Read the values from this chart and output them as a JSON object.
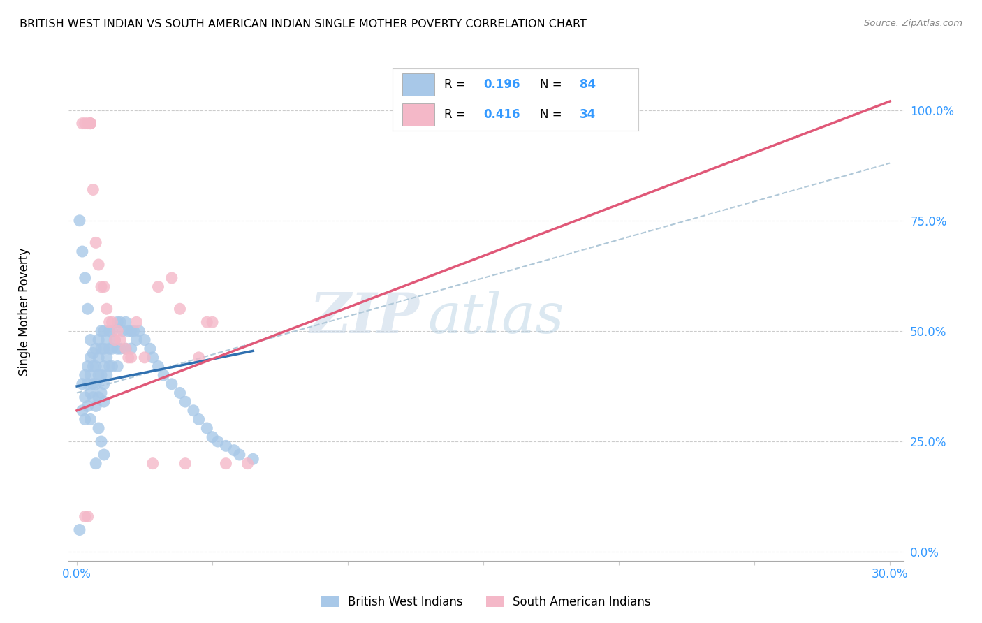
{
  "title": "BRITISH WEST INDIAN VS SOUTH AMERICAN INDIAN SINGLE MOTHER POVERTY CORRELATION CHART",
  "source": "Source: ZipAtlas.com",
  "ylabel": "Single Mother Poverty",
  "ytick_labels": [
    "0.0%",
    "25.0%",
    "50.0%",
    "75.0%",
    "100.0%"
  ],
  "ytick_vals": [
    0.0,
    0.25,
    0.5,
    0.75,
    1.0
  ],
  "xtick_labels": [
    "0.0%",
    "",
    "",
    "",
    "",
    "",
    "30.0%"
  ],
  "xtick_vals": [
    0.0,
    0.05,
    0.1,
    0.15,
    0.2,
    0.25,
    0.3
  ],
  "xlim": [
    -0.003,
    0.305
  ],
  "ylim": [
    -0.02,
    1.08
  ],
  "blue_color": "#a8c8e8",
  "pink_color": "#f4b8c8",
  "blue_line_color": "#3070b0",
  "pink_line_color": "#e05878",
  "dashed_line_color": "#b0c8d8",
  "legend_label1": "British West Indians",
  "legend_label2": "South American Indians",
  "watermark_zip": "ZIP",
  "watermark_atlas": "atlas",
  "blue_r": "0.196",
  "blue_n": "84",
  "pink_r": "0.416",
  "pink_n": "34",
  "blue_line_x0": 0.0,
  "blue_line_y0": 0.375,
  "blue_line_x1": 0.065,
  "blue_line_y1": 0.455,
  "pink_line_x0": 0.0,
  "pink_line_y0": 0.32,
  "pink_line_x1": 0.3,
  "pink_line_y1": 1.02,
  "dash_line_x0": 0.0,
  "dash_line_y0": 0.36,
  "dash_line_x1": 0.3,
  "dash_line_y1": 0.88,
  "blue_scatter_x": [
    0.001,
    0.002,
    0.002,
    0.003,
    0.003,
    0.003,
    0.004,
    0.004,
    0.004,
    0.005,
    0.005,
    0.005,
    0.005,
    0.006,
    0.006,
    0.006,
    0.007,
    0.007,
    0.007,
    0.007,
    0.008,
    0.008,
    0.008,
    0.008,
    0.009,
    0.009,
    0.009,
    0.009,
    0.01,
    0.01,
    0.01,
    0.01,
    0.01,
    0.011,
    0.011,
    0.011,
    0.012,
    0.012,
    0.012,
    0.013,
    0.013,
    0.013,
    0.014,
    0.015,
    0.015,
    0.015,
    0.016,
    0.016,
    0.017,
    0.018,
    0.018,
    0.019,
    0.02,
    0.02,
    0.021,
    0.022,
    0.023,
    0.025,
    0.027,
    0.028,
    0.03,
    0.032,
    0.035,
    0.038,
    0.04,
    0.043,
    0.045,
    0.048,
    0.05,
    0.052,
    0.055,
    0.058,
    0.06,
    0.065,
    0.001,
    0.002,
    0.003,
    0.004,
    0.005,
    0.006,
    0.007,
    0.008,
    0.009,
    0.01
  ],
  "blue_scatter_y": [
    0.05,
    0.38,
    0.32,
    0.4,
    0.35,
    0.3,
    0.42,
    0.38,
    0.33,
    0.44,
    0.4,
    0.36,
    0.3,
    0.42,
    0.38,
    0.35,
    0.46,
    0.42,
    0.38,
    0.33,
    0.48,
    0.44,
    0.4,
    0.35,
    0.5,
    0.46,
    0.4,
    0.36,
    0.5,
    0.46,
    0.42,
    0.38,
    0.34,
    0.48,
    0.44,
    0.4,
    0.5,
    0.46,
    0.42,
    0.5,
    0.46,
    0.42,
    0.48,
    0.52,
    0.46,
    0.42,
    0.52,
    0.46,
    0.5,
    0.52,
    0.46,
    0.5,
    0.5,
    0.46,
    0.5,
    0.48,
    0.5,
    0.48,
    0.46,
    0.44,
    0.42,
    0.4,
    0.38,
    0.36,
    0.34,
    0.32,
    0.3,
    0.28,
    0.26,
    0.25,
    0.24,
    0.23,
    0.22,
    0.21,
    0.75,
    0.68,
    0.62,
    0.55,
    0.48,
    0.45,
    0.2,
    0.28,
    0.25,
    0.22
  ],
  "pink_scatter_x": [
    0.002,
    0.003,
    0.004,
    0.005,
    0.005,
    0.005,
    0.006,
    0.007,
    0.008,
    0.009,
    0.01,
    0.011,
    0.012,
    0.013,
    0.014,
    0.015,
    0.016,
    0.018,
    0.019,
    0.02,
    0.022,
    0.025,
    0.028,
    0.03,
    0.035,
    0.038,
    0.04,
    0.045,
    0.048,
    0.05,
    0.055,
    0.063,
    0.003,
    0.004
  ],
  "pink_scatter_y": [
    0.97,
    0.97,
    0.97,
    0.97,
    0.97,
    0.97,
    0.82,
    0.7,
    0.65,
    0.6,
    0.6,
    0.55,
    0.52,
    0.52,
    0.48,
    0.5,
    0.48,
    0.46,
    0.44,
    0.44,
    0.52,
    0.44,
    0.2,
    0.6,
    0.62,
    0.55,
    0.2,
    0.44,
    0.52,
    0.52,
    0.2,
    0.2,
    0.08,
    0.08
  ]
}
